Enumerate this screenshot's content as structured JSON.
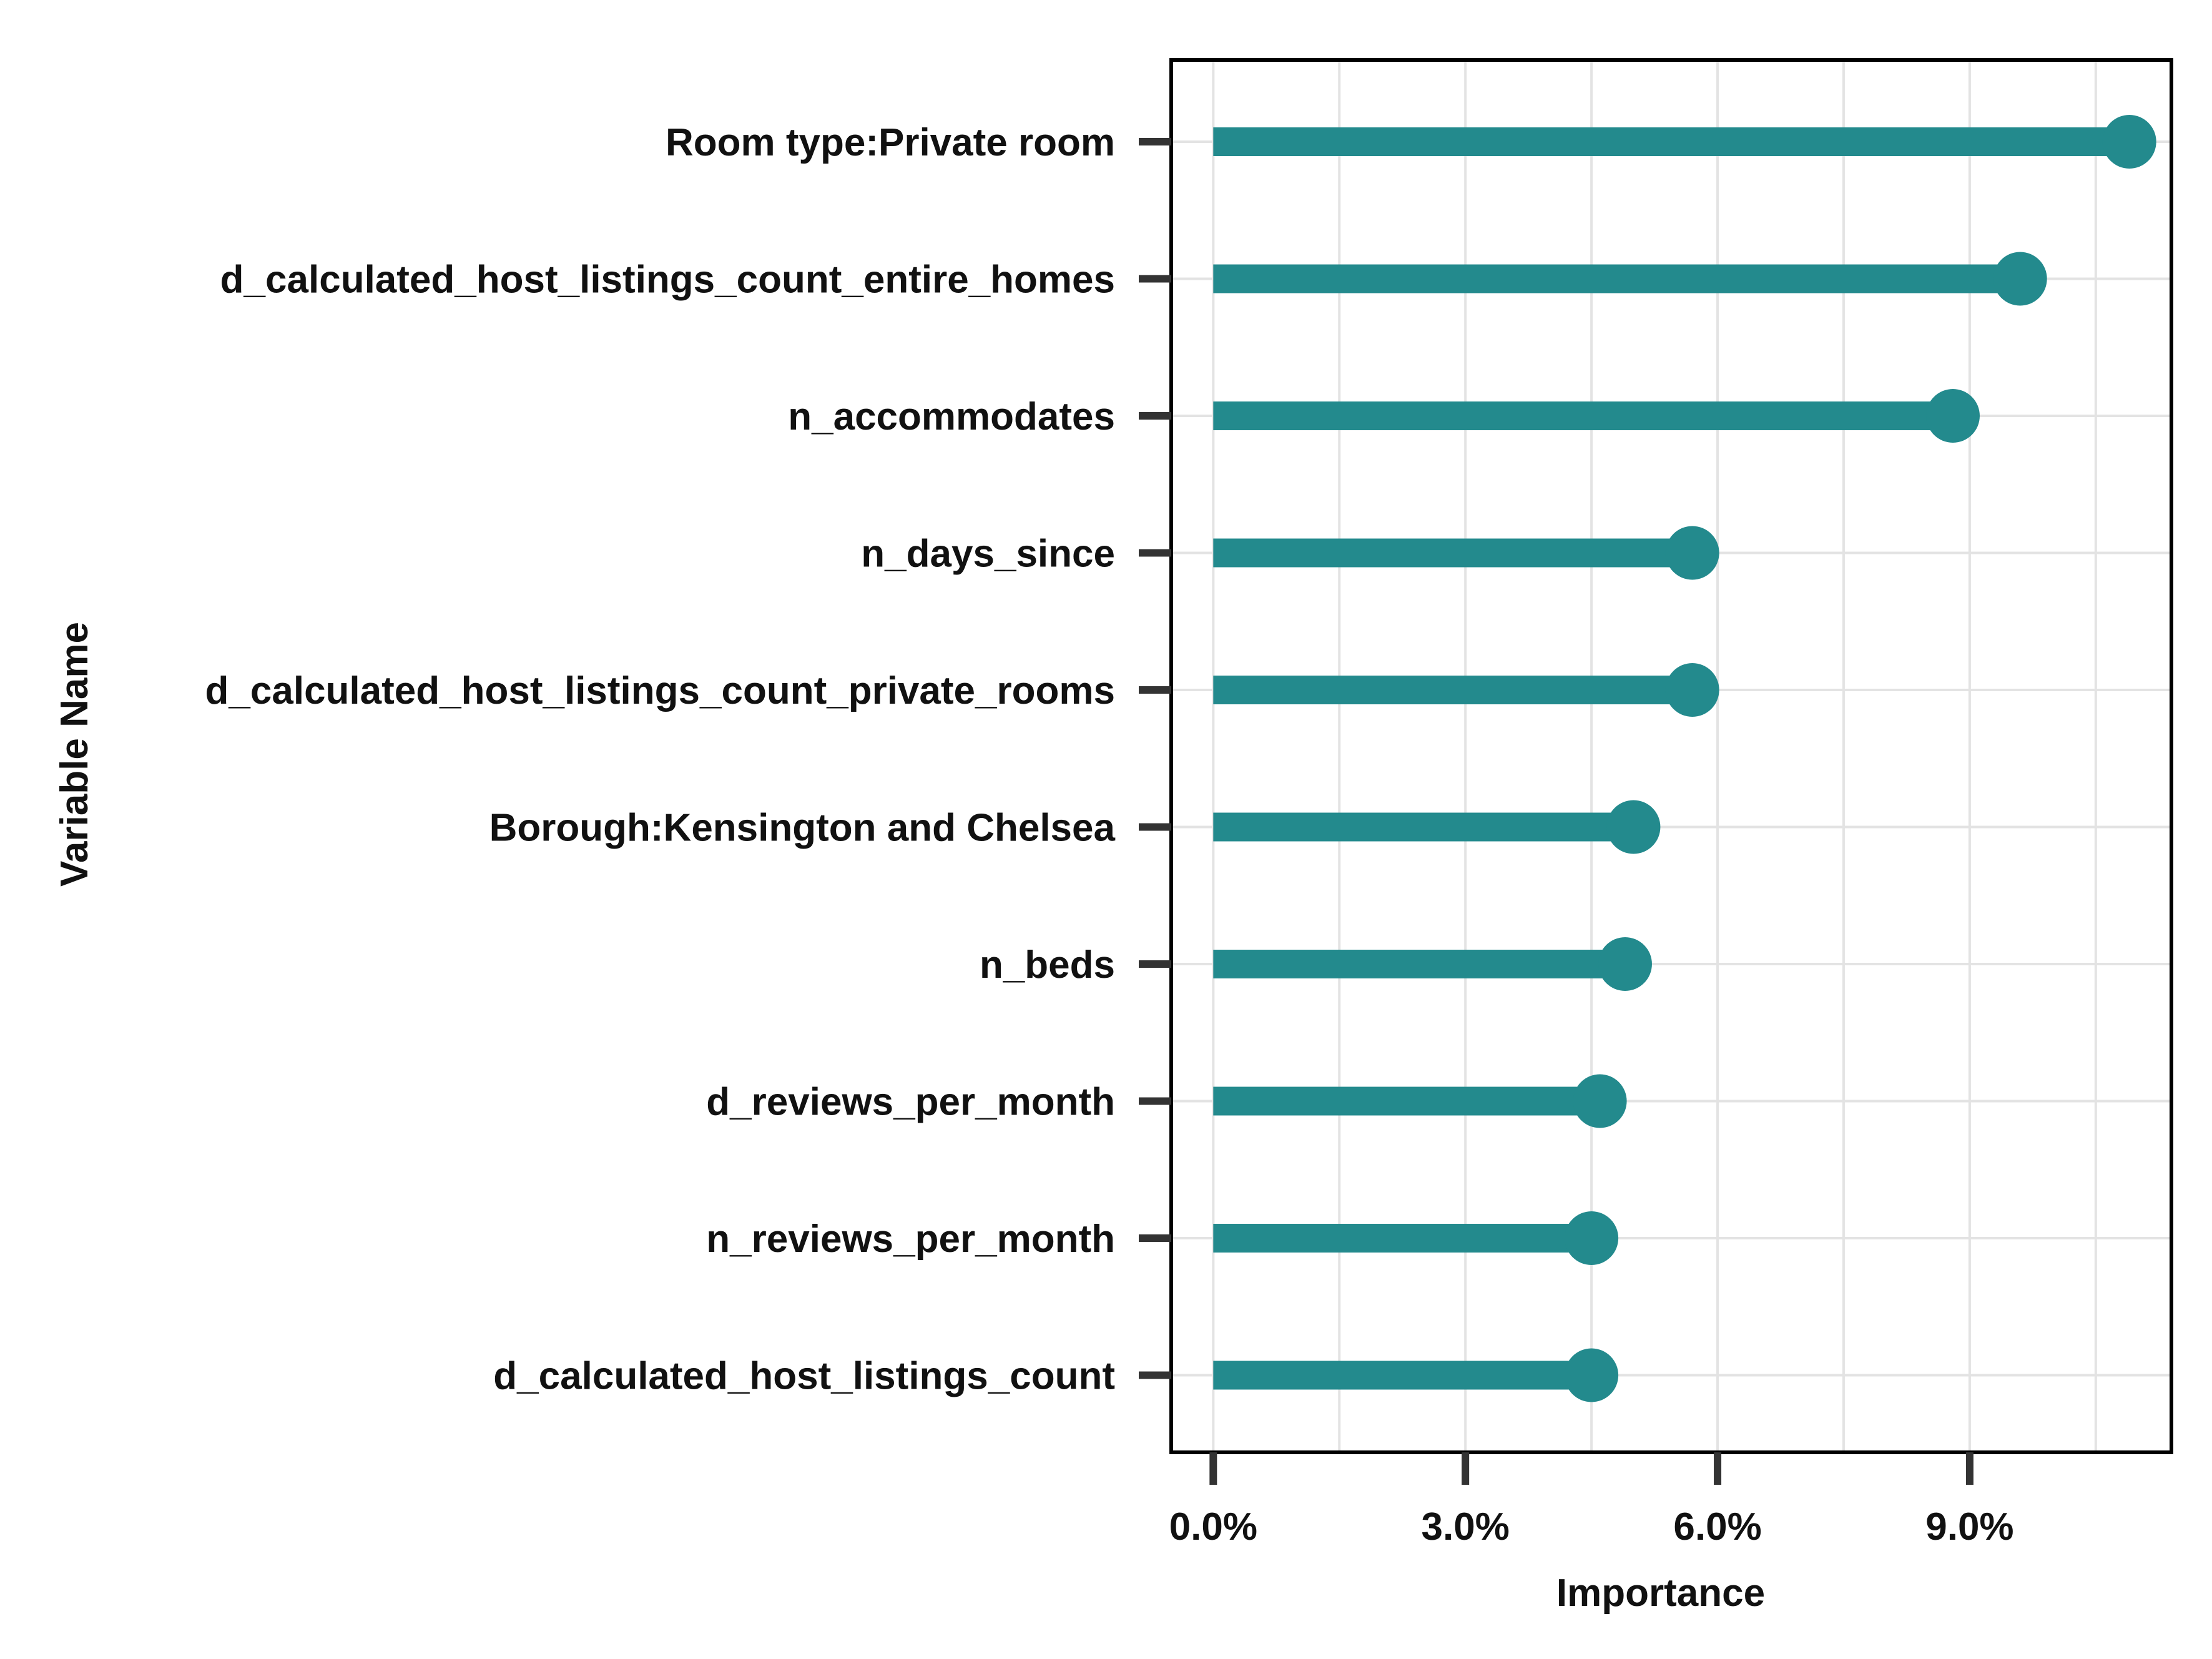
{
  "chart_data": {
    "type": "lollipop",
    "orientation": "horizontal",
    "xlabel": "Importance",
    "ylabel": "Variable Name",
    "xlim": [
      -0.5,
      11.4
    ],
    "x_ticks": [
      0,
      3,
      6,
      9
    ],
    "x_tick_labels": [
      "0.0%",
      "3.0%",
      "6.0%",
      "9.0%"
    ],
    "x_minor_gridlines": [
      1.5,
      4.5,
      7.5,
      10.5
    ],
    "grid": true,
    "color": "#238A8D",
    "categories": [
      "Room type:Private room",
      "d_calculated_host_listings_count_entire_homes",
      "n_accommodates",
      "n_days_since",
      "d_calculated_host_listings_count_private_rooms",
      "Borough:Kensington and Chelsea",
      "n_beds",
      "d_reviews_per_month",
      "n_reviews_per_month",
      "d_calculated_host_listings_count"
    ],
    "values": [
      10.9,
      9.6,
      8.8,
      5.7,
      5.7,
      5.0,
      4.9,
      4.6,
      4.5,
      4.5
    ]
  }
}
